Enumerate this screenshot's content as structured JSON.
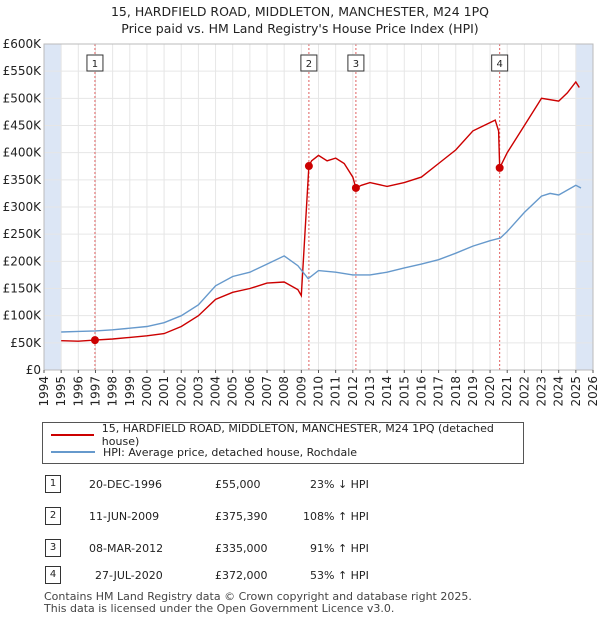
{
  "header": {
    "title_line1": "15, HARDFIELD ROAD, MIDDLETON, MANCHESTER, M24 1PQ",
    "title_line2": "Price paid vs. HM Land Registry's House Price Index (HPI)"
  },
  "colors": {
    "property": "#cc0000",
    "hpi": "#6699cc",
    "shade": "#dce6f5",
    "grid": "#e6e6e6"
  },
  "chart_data": {
    "type": "line",
    "title": "15, HARDFIELD ROAD, MIDDLETON, MANCHESTER, M24 1PQ",
    "subtitle": "Price paid vs. HM Land Registry's House Price Index (HPI)",
    "xlim": [
      1994,
      2026
    ],
    "ylim": [
      0,
      600000
    ],
    "x_ticks": [
      1994,
      1995,
      1996,
      1997,
      1998,
      1999,
      2000,
      2001,
      2002,
      2003,
      2004,
      2005,
      2006,
      2007,
      2008,
      2009,
      2010,
      2011,
      2012,
      2013,
      2014,
      2015,
      2016,
      2017,
      2018,
      2019,
      2020,
      2021,
      2022,
      2023,
      2024,
      2025,
      2026
    ],
    "x_tick_labels": [
      "1994",
      "1995",
      "1996",
      "1997",
      "1998",
      "1999",
      "2000",
      "2001",
      "2002",
      "2003",
      "2004",
      "2005",
      "2006",
      "2007",
      "2008",
      "2009",
      "2010",
      "2011",
      "2012",
      "2013",
      "2014",
      "2015",
      "2016",
      "2017",
      "2018",
      "2019",
      "2020",
      "2021",
      "2022",
      "2023",
      "2024",
      "2025",
      "2026"
    ],
    "y_ticks": [
      0,
      50000,
      100000,
      150000,
      200000,
      250000,
      300000,
      350000,
      400000,
      450000,
      500000,
      550000,
      600000
    ],
    "y_tick_labels": [
      "£0",
      "£50K",
      "£100K",
      "£150K",
      "£200K",
      "£250K",
      "£300K",
      "£350K",
      "£400K",
      "£450K",
      "£500K",
      "£550K",
      "£600K"
    ],
    "shaded_ranges": [
      [
        1994,
        1995
      ],
      [
        2025.0,
        2026
      ]
    ],
    "series": [
      {
        "name": "15, HARDFIELD ROAD, MIDDLETON, MANCHESTER, M24 1PQ (detached house)",
        "color": "#cc0000",
        "points": [
          [
            1995,
            54000
          ],
          [
            1996,
            53000
          ],
          [
            1996.97,
            55000
          ],
          [
            1998,
            57000
          ],
          [
            1999,
            60000
          ],
          [
            2000,
            63000
          ],
          [
            2001,
            67000
          ],
          [
            2002,
            80000
          ],
          [
            2003,
            100000
          ],
          [
            2004,
            130000
          ],
          [
            2005,
            143000
          ],
          [
            2006,
            150000
          ],
          [
            2007,
            160000
          ],
          [
            2008,
            162000
          ],
          [
            2008.8,
            148000
          ],
          [
            2009.0,
            137000
          ],
          [
            2009.44,
            375390
          ],
          [
            2009.6,
            385000
          ],
          [
            2010,
            395000
          ],
          [
            2010.5,
            385000
          ],
          [
            2011,
            390000
          ],
          [
            2011.5,
            380000
          ],
          [
            2012.0,
            355000
          ],
          [
            2012.18,
            335000
          ],
          [
            2012.5,
            340000
          ],
          [
            2013,
            345000
          ],
          [
            2014,
            338000
          ],
          [
            2015,
            345000
          ],
          [
            2016,
            355000
          ],
          [
            2017,
            380000
          ],
          [
            2018,
            405000
          ],
          [
            2019,
            440000
          ],
          [
            2020.3,
            460000
          ],
          [
            2020.5,
            440000
          ],
          [
            2020.56,
            372000
          ],
          [
            2021,
            400000
          ],
          [
            2022,
            450000
          ],
          [
            2022.8,
            490000
          ],
          [
            2023,
            500000
          ],
          [
            2024,
            495000
          ],
          [
            2024.5,
            510000
          ],
          [
            2025,
            530000
          ],
          [
            2025.2,
            520000
          ]
        ]
      },
      {
        "name": "HPI: Average price, detached house, Rochdale",
        "color": "#6699cc",
        "points": [
          [
            1995,
            70000
          ],
          [
            1996,
            71000
          ],
          [
            1997,
            72000
          ],
          [
            1998,
            74000
          ],
          [
            1999,
            77000
          ],
          [
            2000,
            80000
          ],
          [
            2001,
            87000
          ],
          [
            2002,
            100000
          ],
          [
            2003,
            120000
          ],
          [
            2004,
            155000
          ],
          [
            2005,
            172000
          ],
          [
            2006,
            180000
          ],
          [
            2007,
            195000
          ],
          [
            2008,
            210000
          ],
          [
            2008.8,
            192000
          ],
          [
            2009.4,
            168000
          ],
          [
            2010,
            183000
          ],
          [
            2011,
            180000
          ],
          [
            2012,
            175000
          ],
          [
            2013,
            175000
          ],
          [
            2014,
            180000
          ],
          [
            2015,
            188000
          ],
          [
            2016,
            195000
          ],
          [
            2017,
            203000
          ],
          [
            2018,
            215000
          ],
          [
            2019,
            228000
          ],
          [
            2020,
            238000
          ],
          [
            2020.6,
            243000
          ],
          [
            2021,
            255000
          ],
          [
            2022,
            290000
          ],
          [
            2023,
            320000
          ],
          [
            2023.5,
            325000
          ],
          [
            2024,
            322000
          ],
          [
            2025,
            340000
          ],
          [
            2025.3,
            335000
          ]
        ]
      }
    ],
    "sales": [
      {
        "num": "1",
        "x": 1996.97,
        "price": 55000
      },
      {
        "num": "2",
        "x": 2009.44,
        "price": 375390
      },
      {
        "num": "3",
        "x": 2012.18,
        "price": 335000
      },
      {
        "num": "4",
        "x": 2020.56,
        "price": 372000
      }
    ]
  },
  "legend": {
    "property_label": "15, HARDFIELD ROAD, MIDDLETON, MANCHESTER, M24 1PQ (detached house)",
    "hpi_label": "HPI: Average price, detached house, Rochdale"
  },
  "transactions": [
    {
      "num": "1",
      "date": "20-DEC-1996",
      "price": "£55,000",
      "hpi": "23% ↓ HPI"
    },
    {
      "num": "2",
      "date": "11-JUN-2009",
      "price": "£375,390",
      "hpi": "108% ↑ HPI"
    },
    {
      "num": "3",
      "date": "08-MAR-2012",
      "price": "£335,000",
      "hpi": "91% ↑ HPI"
    },
    {
      "num": "4",
      "date": "27-JUL-2020",
      "price": "£372,000",
      "hpi": "53% ↑ HPI"
    }
  ],
  "footer": {
    "line1": "Contains HM Land Registry data © Crown copyright and database right 2025.",
    "line2": "This data is licensed under the Open Government Licence v3.0."
  }
}
